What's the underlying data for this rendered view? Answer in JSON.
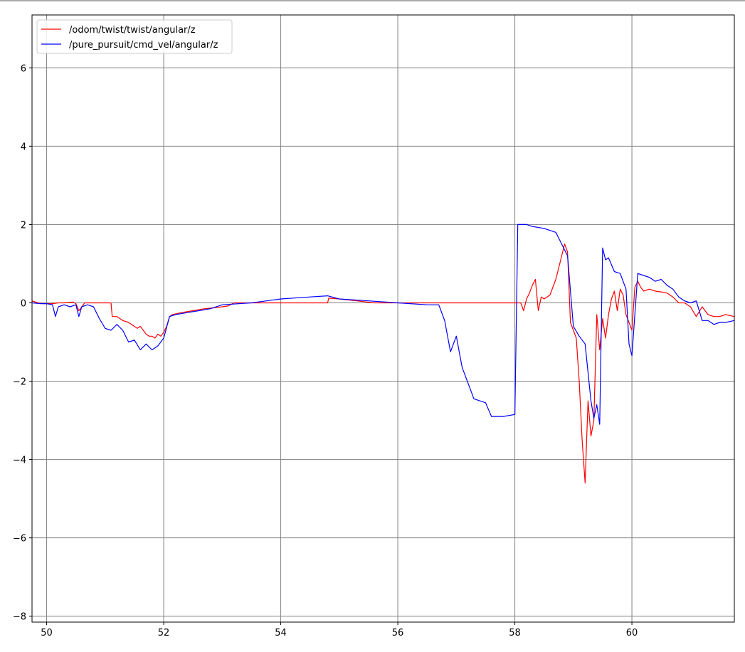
{
  "chart_data": {
    "type": "line",
    "title": "",
    "xlabel": "",
    "ylabel": "",
    "xlim": [
      49.75,
      61.75
    ],
    "ylim": [
      -8.15,
      7.35
    ],
    "xticks": [
      50,
      52,
      54,
      56,
      58,
      60
    ],
    "yticks": [
      -8,
      -6,
      -4,
      -2,
      0,
      2,
      4,
      6
    ],
    "xtick_labels": [
      "50",
      "52",
      "54",
      "56",
      "58",
      "60"
    ],
    "ytick_labels": [
      "−8",
      "−6",
      "−4",
      "−2",
      "0",
      "2",
      "4",
      "6"
    ],
    "grid": true,
    "legend_position": "top-left",
    "series": [
      {
        "name": "/odom/twist/twist/angular/z",
        "color": "#ff0000",
        "x": [
          49.75,
          49.85,
          49.95,
          50.1,
          50.2,
          50.3,
          50.45,
          50.5,
          50.55,
          50.6,
          50.65,
          50.7,
          50.75,
          50.85,
          51.0,
          51.1,
          51.12,
          51.2,
          51.3,
          51.4,
          51.5,
          51.55,
          51.6,
          51.7,
          51.75,
          51.8,
          51.85,
          51.9,
          51.95,
          52.0,
          52.05,
          52.1,
          52.15,
          52.3,
          52.5,
          52.7,
          52.9,
          53.0,
          53.1,
          53.2,
          53.5,
          54.0,
          54.5,
          54.8,
          54.82,
          55.0,
          55.3,
          55.6,
          56.0,
          56.5,
          57.0,
          57.5,
          58.0,
          58.1,
          58.15,
          58.2,
          58.25,
          58.3,
          58.35,
          58.4,
          58.45,
          58.5,
          58.6,
          58.7,
          58.75,
          58.8,
          58.85,
          58.9,
          58.95,
          59.0,
          59.05,
          59.1,
          59.15,
          59.2,
          59.25,
          59.3,
          59.35,
          59.4,
          59.45,
          59.5,
          59.55,
          59.6,
          59.65,
          59.7,
          59.75,
          59.8,
          59.85,
          59.9,
          59.95,
          60.0,
          60.05,
          60.1,
          60.15,
          60.2,
          60.3,
          60.4,
          60.5,
          60.6,
          60.7,
          60.8,
          60.9,
          61.0,
          61.1,
          61.2,
          61.3,
          61.4,
          61.5,
          61.6,
          61.75
        ],
        "values": [
          0.05,
          0.0,
          -0.02,
          -0.02,
          0.0,
          0.0,
          0.02,
          -0.02,
          -0.2,
          -0.1,
          0.0,
          0.0,
          0.0,
          0.0,
          0.0,
          0.0,
          -0.35,
          -0.35,
          -0.45,
          -0.5,
          -0.6,
          -0.65,
          -0.6,
          -0.8,
          -0.85,
          -0.85,
          -0.9,
          -0.8,
          -0.85,
          -0.75,
          -0.6,
          -0.35,
          -0.3,
          -0.25,
          -0.2,
          -0.15,
          -0.12,
          -0.1,
          -0.08,
          0.0,
          0.0,
          0.0,
          0.0,
          0.0,
          0.12,
          0.1,
          0.05,
          0.0,
          0.0,
          0.0,
          0.0,
          0.0,
          0.0,
          0.0,
          -0.2,
          0.1,
          0.25,
          0.45,
          0.6,
          -0.2,
          0.15,
          0.1,
          0.2,
          0.6,
          0.9,
          1.2,
          1.5,
          1.3,
          -0.5,
          -0.7,
          -0.9,
          -2.0,
          -3.5,
          -4.6,
          -2.5,
          -3.4,
          -3.0,
          -0.3,
          -1.2,
          -0.4,
          -0.9,
          -0.3,
          0.1,
          0.3,
          -0.2,
          0.35,
          0.2,
          -0.3,
          -0.5,
          -0.7,
          0.4,
          0.55,
          0.4,
          0.3,
          0.35,
          0.3,
          0.28,
          0.25,
          0.15,
          0.0,
          0.0,
          -0.1,
          -0.35,
          -0.1,
          -0.3,
          -0.35,
          -0.35,
          -0.3,
          -0.35
        ]
      },
      {
        "name": "/pure_pursuit/cmd_vel/angular/z",
        "color": "#0000ff",
        "x": [
          49.75,
          49.9,
          50.0,
          50.1,
          50.15,
          50.2,
          50.3,
          50.4,
          50.5,
          50.55,
          50.6,
          50.7,
          50.8,
          50.9,
          51.0,
          51.1,
          51.2,
          51.3,
          51.4,
          51.5,
          51.6,
          51.7,
          51.8,
          51.9,
          52.0,
          52.1,
          52.2,
          52.4,
          52.6,
          52.8,
          53.0,
          53.5,
          54.0,
          54.5,
          54.8,
          55.0,
          55.5,
          56.0,
          56.5,
          56.7,
          56.8,
          56.9,
          57.0,
          57.1,
          57.2,
          57.3,
          57.4,
          57.5,
          57.6,
          57.7,
          57.8,
          58.0,
          58.05,
          58.1,
          58.2,
          58.3,
          58.5,
          58.7,
          58.8,
          58.9,
          59.0,
          59.1,
          59.2,
          59.3,
          59.35,
          59.4,
          59.45,
          59.5,
          59.55,
          59.6,
          59.7,
          59.8,
          59.9,
          59.95,
          60.0,
          60.1,
          60.2,
          60.3,
          60.4,
          60.5,
          60.6,
          60.7,
          60.8,
          60.9,
          61.0,
          61.1,
          61.2,
          61.3,
          61.4,
          61.5,
          61.6,
          61.75
        ],
        "values": [
          0.0,
          -0.02,
          -0.02,
          -0.05,
          -0.35,
          -0.1,
          -0.05,
          -0.1,
          -0.05,
          -0.35,
          -0.1,
          -0.05,
          -0.1,
          -0.4,
          -0.65,
          -0.7,
          -0.55,
          -0.7,
          -1.0,
          -0.95,
          -1.2,
          -1.05,
          -1.2,
          -1.1,
          -0.9,
          -0.35,
          -0.3,
          -0.25,
          -0.2,
          -0.15,
          -0.05,
          0.0,
          0.1,
          0.15,
          0.18,
          0.1,
          0.05,
          0.0,
          -0.05,
          -0.05,
          -0.45,
          -1.25,
          -0.85,
          -1.65,
          -2.05,
          -2.45,
          -2.5,
          -2.55,
          -2.9,
          -2.9,
          -2.9,
          -2.85,
          2.0,
          2.0,
          2.0,
          1.95,
          1.9,
          1.8,
          1.5,
          1.2,
          -0.6,
          -0.85,
          -1.05,
          -2.5,
          -2.95,
          -2.6,
          -3.1,
          1.4,
          1.1,
          1.15,
          0.8,
          0.75,
          0.35,
          -1.05,
          -1.35,
          0.75,
          0.7,
          0.65,
          0.55,
          0.6,
          0.45,
          0.35,
          0.15,
          0.05,
          0.0,
          0.05,
          -0.45,
          -0.45,
          -0.55,
          -0.5,
          -0.5,
          -0.45
        ]
      }
    ]
  }
}
